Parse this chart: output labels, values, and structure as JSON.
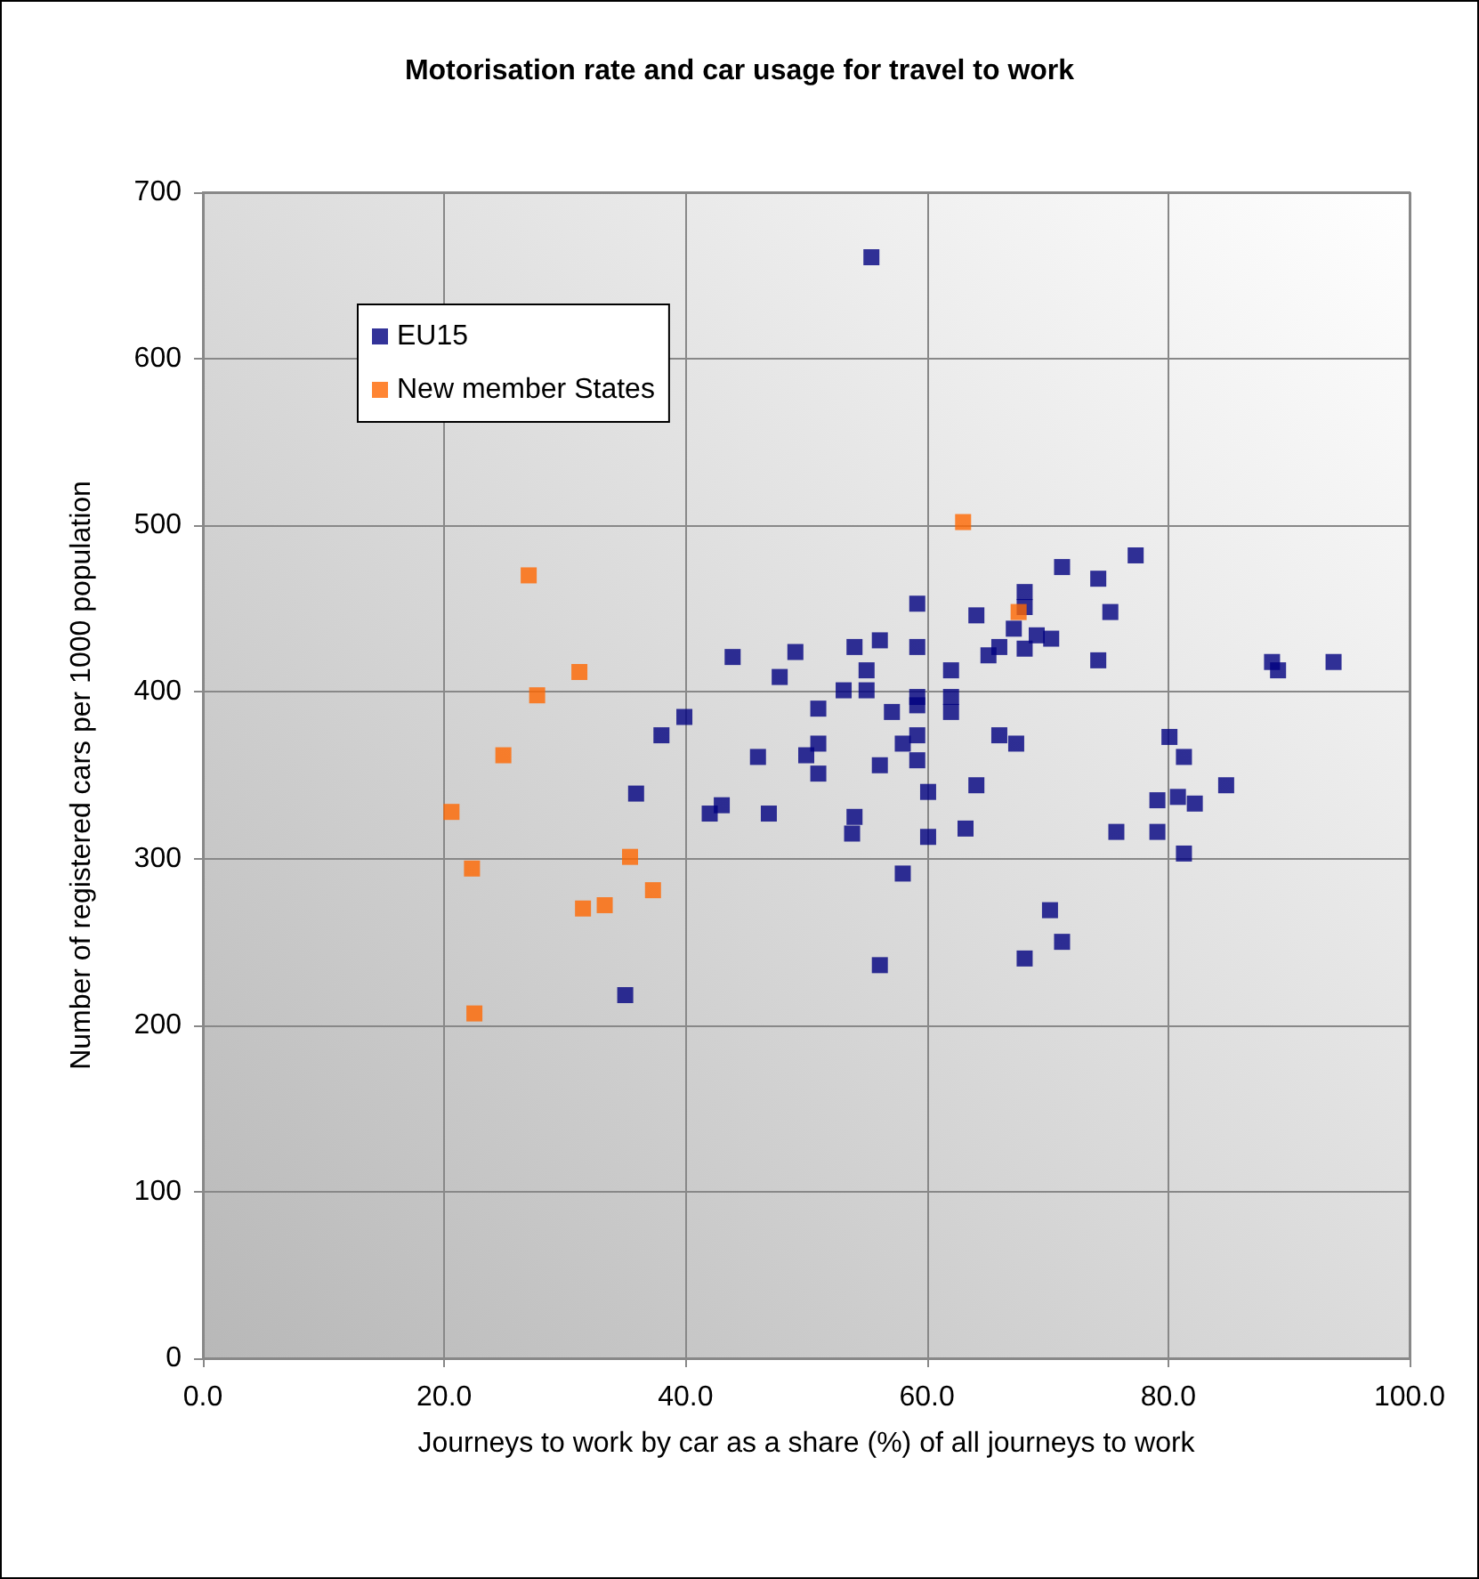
{
  "chart_data": {
    "type": "scatter",
    "title": "Motorisation rate and car usage for travel to work",
    "xlabel": "Journeys to work by car as a share (%) of all journeys to work",
    "ylabel": "Number of registered cars per 1000 population",
    "xlim": [
      0,
      100
    ],
    "xticks": [
      {
        "value": 0,
        "label": "0.0"
      },
      {
        "value": 20,
        "label": "20.0"
      },
      {
        "value": 40,
        "label": "40.0"
      },
      {
        "value": 60,
        "label": "60.0"
      },
      {
        "value": 80,
        "label": "80.0"
      },
      {
        "value": 100,
        "label": "100.0"
      }
    ],
    "ylim": [
      0,
      700
    ],
    "yticks": [
      0,
      100,
      200,
      300,
      400,
      500,
      600,
      700
    ],
    "grid": true,
    "legend": "top left",
    "marker": "square",
    "series": [
      {
        "name": "EU15",
        "color": "#000080",
        "x": [
          43.9,
          47.8,
          39.9,
          38.0,
          46.0,
          35.9,
          43.0,
          42.0,
          46.9,
          35.0,
          55.4,
          71.2,
          74.2,
          68.1,
          68.1,
          59.2,
          64.1,
          75.2,
          67.2,
          69.1,
          70.3,
          68.1,
          66.0,
          65.1,
          74.2,
          59.2,
          56.1,
          54.0,
          49.1,
          55.0,
          62.0,
          53.1,
          55.0,
          51.0,
          57.1,
          59.2,
          59.2,
          62.0,
          62.0,
          66.0,
          67.4,
          51.0,
          50.0,
          58.0,
          59.2,
          59.2,
          56.1,
          51.0,
          60.1,
          64.1,
          54.0,
          53.8,
          60.1,
          63.2,
          75.7,
          58.0,
          70.2,
          71.2,
          68.1,
          56.1,
          77.3,
          88.6,
          89.1,
          93.7,
          80.1,
          81.3,
          84.8,
          79.1,
          80.8,
          82.2,
          79.1,
          81.3
        ],
        "values": [
          421,
          409,
          385,
          374,
          361,
          339,
          332,
          327,
          327,
          218,
          661,
          475,
          468,
          460,
          451,
          453,
          446,
          448,
          438,
          434,
          432,
          426,
          427,
          422,
          419,
          427,
          431,
          427,
          424,
          413,
          413,
          401,
          401,
          390,
          388,
          397,
          392,
          397,
          388,
          374,
          369,
          369,
          362,
          369,
          374,
          359,
          356,
          351,
          340,
          344,
          325,
          315,
          313,
          318,
          316,
          291,
          269,
          250,
          240,
          236,
          482,
          418,
          413,
          418,
          373,
          361,
          344,
          335,
          337,
          333,
          316,
          303
        ]
      },
      {
        "name": "New member States",
        "color": "#ff6600",
        "x": [
          27.0,
          31.2,
          27.7,
          24.9,
          20.6,
          22.3,
          35.4,
          37.3,
          33.3,
          31.5,
          22.5,
          63.0,
          67.6
        ],
        "values": [
          470,
          412,
          398,
          362,
          328,
          294,
          301,
          281,
          272,
          270,
          207,
          502,
          448
        ]
      }
    ]
  }
}
